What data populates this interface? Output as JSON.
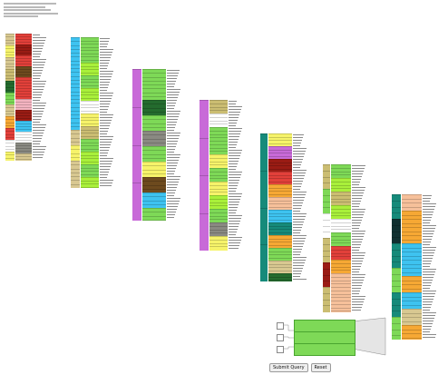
{
  "header": {
    "link_1": "",
    "link_2": ""
  },
  "legend": {
    "rows": [
      {
        "label": "legend-row-1"
      },
      {
        "label": "legend-row-2"
      },
      {
        "label": "legend-row-3"
      }
    ]
  },
  "form": {
    "submit_label": "Submit Query",
    "reset_label": "Reset"
  },
  "palette": {
    "red": "#e2403a",
    "darkred": "#9a1c14",
    "tan": "#d8c891",
    "olive": "#9c9a3a",
    "green": "#7ed957",
    "lime": "#a9f03a",
    "cyan": "#3ec3f0",
    "magenta": "#c86ad8",
    "yellow": "#f6f36a",
    "orange": "#f6a834",
    "teal": "#168a7a",
    "gray": "#8a8a82",
    "peach": "#f6c09a",
    "darkgreen": "#246b2e",
    "white": "#ffffff",
    "pink": "#f3b4c0",
    "navy": "#103030",
    "brown": "#6d4a1e",
    "khaki": "#cbbd72"
  }
}
